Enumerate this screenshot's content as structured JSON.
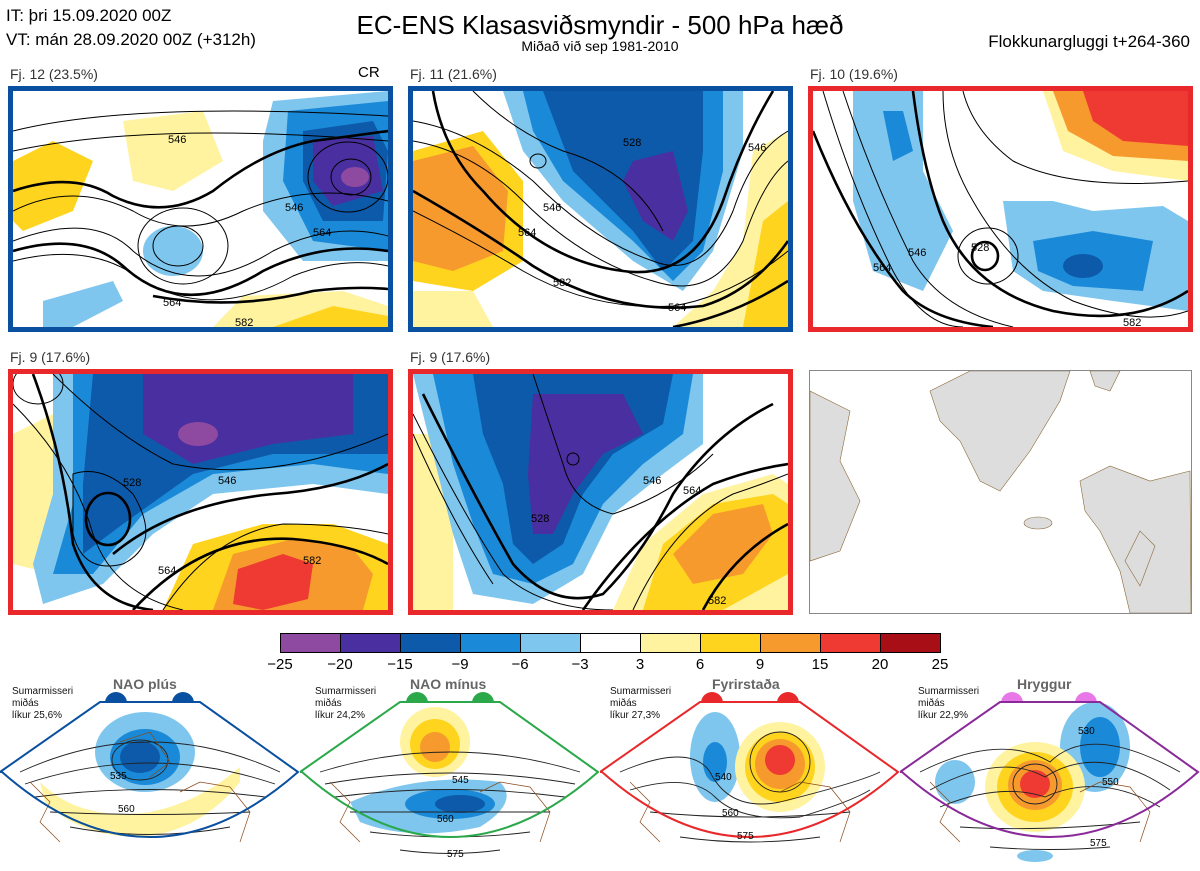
{
  "header": {
    "it_line": "IT: þri 15.09.2020 00Z",
    "vt_line": "VT: mán 28.09.2020 00Z  (+312h)",
    "title": "EC-ENS Klasasviðsmyndir - 500 hPa hæð",
    "subtitle": "Miðað við sep 1981-2010",
    "window": "Flokkunargluggi t+264-360"
  },
  "panels": [
    {
      "label": "Fj. 12 (23.5%)",
      "tag": "CR",
      "border": "#0a50a0",
      "contours": [
        "546",
        "564",
        "582",
        "546",
        "564"
      ]
    },
    {
      "label": "Fj. 11 (21.6%)",
      "tag": "",
      "border": "#0a50a0",
      "contours": [
        "528",
        "546",
        "564",
        "582",
        "564",
        "546"
      ]
    },
    {
      "label": "Fj. 10 (19.6%)",
      "tag": "",
      "border": "#e8282a",
      "contours": [
        "528",
        "546",
        "564",
        "582"
      ]
    },
    {
      "label": "Fj. 9 (17.6%)",
      "tag": "",
      "border": "#e8282a",
      "contours": [
        "528",
        "546",
        "564",
        "582"
      ]
    },
    {
      "label": "Fj. 9 (17.6%)",
      "tag": "",
      "border": "#e8282a",
      "contours": [
        "528",
        "546",
        "564",
        "582"
      ]
    }
  ],
  "colorbar": {
    "ticks": [
      "−25",
      "−20",
      "−15",
      "−9",
      "−6",
      "−3",
      "3",
      "6",
      "9",
      "15",
      "20",
      "25"
    ],
    "colors": [
      "#8e4aa0",
      "#4a2fa0",
      "#0d5aaa",
      "#1a8ad8",
      "#7ec6ee",
      "#ffffff",
      "#fff3a0",
      "#ffd41e",
      "#f79a2e",
      "#ee3a32",
      "#a80e16"
    ]
  },
  "regimes": [
    {
      "name": "NAO plús",
      "info": "Sumarmisseri\nmiðás\nlíkur 25,6%",
      "color": "#0a50a0",
      "dot": "#0a50a0",
      "contours": [
        "535",
        "560"
      ]
    },
    {
      "name": "NAO mínus",
      "info": "Sumarmisseri\nmiðás\nlíkur 24,2%",
      "color": "#2aa84a",
      "dot": "#2aa84a",
      "contours": [
        "545",
        "560",
        "575"
      ]
    },
    {
      "name": "Fyrirstaða",
      "info": "Sumarmisseri\nmiðás\nlíkur 27,3%",
      "color": "#e8282a",
      "dot": "#e8282a",
      "contours": [
        "540",
        "560",
        "575"
      ]
    },
    {
      "name": "Hryggur",
      "info": "Sumarmisseri\nmiðás\nlíkur 22,9%",
      "color": "#8a2a9a",
      "dot": "#e878e8",
      "contours": [
        "530",
        "550",
        "575"
      ]
    }
  ]
}
